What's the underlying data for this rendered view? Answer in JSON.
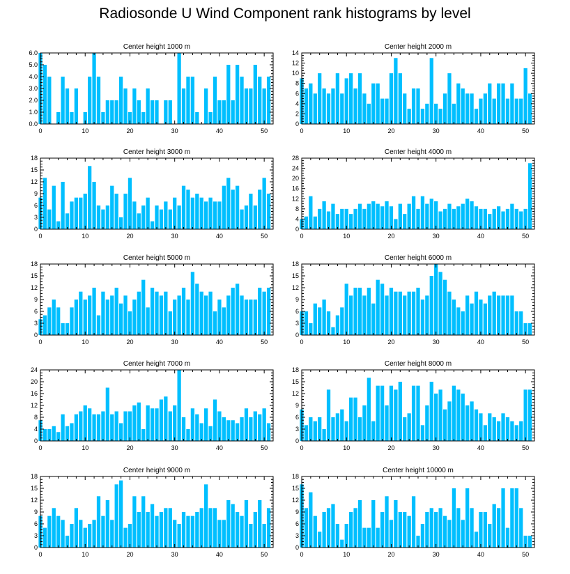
{
  "figure_title": "Radiosonde U Wind Component rank histograms by level",
  "colors": {
    "bar": "#00BFFF",
    "axis": "#000000"
  },
  "chart_data": [
    {
      "type": "bar",
      "title": "Center height 1000 m",
      "xlabel": "",
      "ylabel": "",
      "xlim": [
        0,
        52
      ],
      "ylim": [
        0,
        6
      ],
      "xticks": [
        "0",
        "10",
        "20",
        "30",
        "40",
        "50"
      ],
      "yticks": [
        "0.0",
        "1.0",
        "2.0",
        "3.0",
        "4.0",
        "5.0",
        "6.0"
      ],
      "values": [
        6,
        5,
        4,
        0,
        1,
        4,
        3,
        1,
        3,
        0,
        1,
        4,
        6,
        4,
        1,
        2,
        2,
        2,
        4,
        3,
        1,
        3,
        2,
        1,
        3,
        2,
        2,
        0,
        2,
        2,
        0,
        6,
        3,
        4,
        4,
        1,
        0,
        3,
        1,
        4,
        2,
        2,
        5,
        2,
        5,
        4,
        3,
        3,
        5,
        4,
        3,
        4
      ]
    },
    {
      "type": "bar",
      "title": "Center height 2000 m",
      "xlabel": "",
      "ylabel": "",
      "xlim": [
        0,
        52
      ],
      "ylim": [
        0,
        14
      ],
      "xticks": [
        "0",
        "10",
        "20",
        "30",
        "40",
        "50"
      ],
      "yticks": [
        "0",
        "2",
        "4",
        "6",
        "8",
        "10",
        "12",
        "14"
      ],
      "values": [
        9,
        7,
        8,
        6,
        10,
        7,
        6,
        7,
        10,
        6,
        9,
        10,
        7,
        10,
        6,
        4,
        8,
        8,
        5,
        5,
        10,
        13,
        10,
        6,
        3,
        7,
        7,
        3,
        4,
        13,
        4,
        3,
        6,
        10,
        4,
        8,
        7,
        6,
        6,
        3,
        5,
        6,
        8,
        5,
        8,
        8,
        5,
        8,
        5,
        5,
        11,
        6
      ]
    },
    {
      "type": "bar",
      "title": "Center height 3000 m",
      "xlabel": "",
      "ylabel": "",
      "xlim": [
        0,
        52
      ],
      "ylim": [
        0,
        18
      ],
      "xticks": [
        "0",
        "10",
        "20",
        "30",
        "40",
        "50"
      ],
      "yticks": [
        "0",
        "3",
        "6",
        "9",
        "12",
        "15",
        "18"
      ],
      "values": [
        8,
        13,
        5,
        11,
        2,
        12,
        4,
        7,
        8,
        8,
        9,
        16,
        12,
        6,
        5,
        6,
        11,
        9,
        3,
        9,
        13,
        7,
        4,
        6,
        8,
        2,
        6,
        5,
        7,
        5,
        8,
        6,
        11,
        10,
        8,
        9,
        8,
        7,
        8,
        7,
        7,
        11,
        13,
        10,
        11,
        5,
        6,
        9,
        6,
        10,
        13,
        9
      ]
    },
    {
      "type": "bar",
      "title": "Center height 4000 m",
      "xlabel": "",
      "ylabel": "",
      "xlim": [
        0,
        52
      ],
      "ylim": [
        0,
        28
      ],
      "xticks": [
        "0",
        "10",
        "20",
        "30",
        "40",
        "50"
      ],
      "yticks": [
        "0",
        "4",
        "8",
        "12",
        "16",
        "20",
        "24",
        "28"
      ],
      "values": [
        4,
        5,
        13,
        5,
        8,
        11,
        7,
        10,
        6,
        8,
        8,
        6,
        8,
        10,
        8,
        10,
        11,
        10,
        9,
        11,
        9,
        4,
        10,
        6,
        10,
        13,
        8,
        13,
        10,
        12,
        11,
        7,
        8,
        10,
        8,
        9,
        10,
        12,
        11,
        9,
        8,
        8,
        6,
        8,
        9,
        7,
        8,
        10,
        8,
        7,
        8,
        26
      ]
    },
    {
      "type": "bar",
      "title": "Center height 5000 m",
      "xlabel": "",
      "ylabel": "",
      "xlim": [
        0,
        52
      ],
      "ylim": [
        0,
        18
      ],
      "xticks": [
        "0",
        "10",
        "20",
        "30",
        "40",
        "50"
      ],
      "yticks": [
        "0",
        "3",
        "6",
        "9",
        "12",
        "15",
        "18"
      ],
      "values": [
        4,
        5,
        7,
        9,
        7,
        3,
        3,
        7,
        9,
        11,
        9,
        10,
        12,
        5,
        11,
        9,
        10,
        12,
        8,
        10,
        6,
        9,
        11,
        14,
        7,
        12,
        11,
        10,
        11,
        6,
        9,
        10,
        12,
        9,
        16,
        13,
        11,
        10,
        11,
        6,
        9,
        7,
        10,
        12,
        13,
        10,
        9,
        9,
        9,
        12,
        11,
        12
      ]
    },
    {
      "type": "bar",
      "title": "Center height 6000 m",
      "xlabel": "",
      "ylabel": "",
      "xlim": [
        0,
        52
      ],
      "ylim": [
        0,
        18
      ],
      "xticks": [
        "0",
        "10",
        "20",
        "30",
        "40",
        "50"
      ],
      "yticks": [
        "0",
        "3",
        "6",
        "9",
        "12",
        "15",
        "18"
      ],
      "values": [
        6,
        6,
        3,
        8,
        7,
        9,
        6,
        2,
        5,
        7,
        13,
        10,
        12,
        12,
        10,
        12,
        8,
        14,
        13,
        10,
        12,
        11,
        11,
        10,
        11,
        11,
        12,
        9,
        10,
        15,
        18,
        16,
        14,
        11,
        9,
        7,
        6,
        10,
        8,
        11,
        9,
        8,
        10,
        11,
        10,
        10,
        10,
        10,
        6,
        6,
        3,
        3
      ]
    },
    {
      "type": "bar",
      "title": "Center height 7000 m",
      "xlabel": "",
      "ylabel": "",
      "xlim": [
        0,
        52
      ],
      "ylim": [
        0,
        24
      ],
      "xticks": [
        "0",
        "10",
        "20",
        "30",
        "40",
        "50"
      ],
      "yticks": [
        "0",
        "4",
        "8",
        "12",
        "16",
        "20",
        "24"
      ],
      "values": [
        7,
        4,
        4,
        5,
        3,
        9,
        5,
        6,
        9,
        10,
        12,
        11,
        9,
        9,
        10,
        18,
        9,
        10,
        6,
        10,
        10,
        12,
        13,
        4,
        12,
        11,
        11,
        14,
        15,
        10,
        12,
        24,
        8,
        4,
        11,
        9,
        6,
        11,
        5,
        14,
        10,
        8,
        7,
        7,
        6,
        8,
        11,
        8,
        10,
        9,
        11,
        6
      ]
    },
    {
      "type": "bar",
      "title": "Center height 8000 m",
      "xlabel": "",
      "ylabel": "",
      "xlim": [
        0,
        52
      ],
      "ylim": [
        0,
        18
      ],
      "xticks": [
        "0",
        "10",
        "20",
        "30",
        "40",
        "50"
      ],
      "yticks": [
        "0",
        "3",
        "6",
        "9",
        "12",
        "15",
        "18"
      ],
      "values": [
        8,
        4,
        6,
        5,
        6,
        3,
        13,
        6,
        7,
        8,
        5,
        11,
        11,
        6,
        9,
        16,
        5,
        14,
        14,
        9,
        14,
        13,
        15,
        6,
        7,
        14,
        14,
        4,
        9,
        15,
        12,
        13,
        8,
        10,
        14,
        13,
        12,
        9,
        10,
        8,
        7,
        4,
        7,
        6,
        5,
        7,
        6,
        5,
        4,
        5,
        13,
        13
      ]
    },
    {
      "type": "bar",
      "title": "Center height 9000 m",
      "xlabel": "",
      "ylabel": "",
      "xlim": [
        0,
        52
      ],
      "ylim": [
        0,
        18
      ],
      "xticks": [
        "0",
        "10",
        "20",
        "30",
        "40",
        "50"
      ],
      "yticks": [
        "0",
        "3",
        "6",
        "9",
        "12",
        "15",
        "18"
      ],
      "values": [
        8,
        5,
        8,
        10,
        8,
        7,
        3,
        6,
        10,
        7,
        5,
        6,
        7,
        13,
        8,
        12,
        7,
        16,
        17,
        5,
        6,
        13,
        9,
        13,
        9,
        11,
        8,
        9,
        10,
        10,
        7,
        6,
        9,
        8,
        8,
        9,
        10,
        16,
        10,
        10,
        7,
        7,
        12,
        11,
        9,
        8,
        12,
        6,
        9,
        12,
        6,
        10
      ]
    },
    {
      "type": "bar",
      "title": "Center height 10000 m",
      "xlabel": "",
      "ylabel": "",
      "xlim": [
        0,
        52
      ],
      "ylim": [
        0,
        18
      ],
      "xticks": [
        "0",
        "10",
        "20",
        "30",
        "40",
        "50"
      ],
      "yticks": [
        "0",
        "3",
        "6",
        "9",
        "12",
        "15",
        "18"
      ],
      "values": [
        16,
        10,
        14,
        8,
        4,
        9,
        10,
        11,
        6,
        2,
        6,
        9,
        10,
        12,
        5,
        5,
        12,
        5,
        9,
        13,
        7,
        12,
        9,
        9,
        8,
        13,
        3,
        6,
        9,
        10,
        9,
        10,
        8,
        7,
        15,
        10,
        7,
        15,
        10,
        4,
        9,
        9,
        6,
        11,
        10,
        15,
        5,
        15,
        15,
        10,
        3,
        3
      ]
    }
  ]
}
